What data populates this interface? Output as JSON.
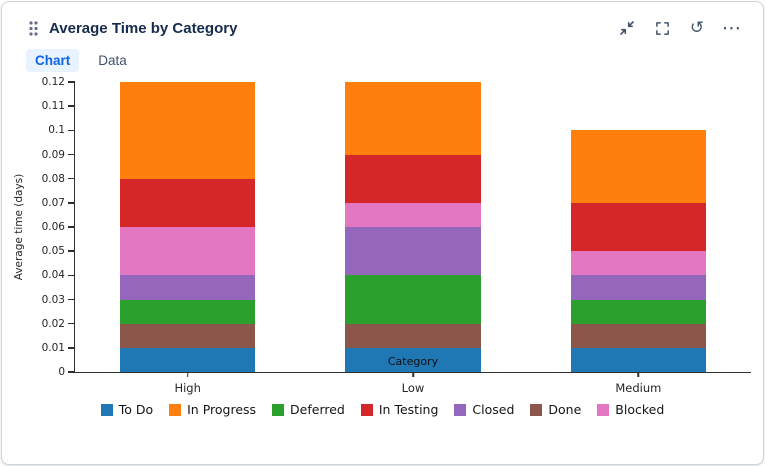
{
  "header": {
    "title": "Average Time by Category",
    "refresh_glyph": "↺",
    "more_glyph": "⋯"
  },
  "tabs": [
    {
      "label": "Chart",
      "active": true
    },
    {
      "label": "Data",
      "active": false
    }
  ],
  "chart_data": {
    "type": "bar",
    "stacked": true,
    "title": "Average Time by Category",
    "xlabel": "Category",
    "ylabel": "Average time (days)",
    "ylim": [
      0,
      0.12
    ],
    "grid": false,
    "legend_position": "bottom",
    "categories": [
      "High",
      "Low",
      "Medium"
    ],
    "y_ticks": [
      "0",
      "0.01",
      "0.02",
      "0.03",
      "0.04",
      "0.05",
      "0.06",
      "0.07",
      "0.08",
      "0.09",
      "0.1",
      "0.11",
      "0.12"
    ],
    "series": [
      {
        "name": "To Do",
        "color": "#1f77b4",
        "values": [
          0.01,
          0.01,
          0.01
        ]
      },
      {
        "name": "Done",
        "color": "#8c564b",
        "values": [
          0.01,
          0.01,
          0.01
        ]
      },
      {
        "name": "Deferred",
        "color": "#2ca02c",
        "values": [
          0.01,
          0.02,
          0.01
        ]
      },
      {
        "name": "Closed",
        "color": "#9467bd",
        "values": [
          0.01,
          0.02,
          0.01
        ]
      },
      {
        "name": "Blocked",
        "color": "#e377c2",
        "values": [
          0.02,
          0.01,
          0.01
        ]
      },
      {
        "name": "In Testing",
        "color": "#d62728",
        "values": [
          0.02,
          0.02,
          0.02
        ]
      },
      {
        "name": "In Progress",
        "color": "#ff7f0e",
        "values": [
          0.04,
          0.03,
          0.03
        ]
      }
    ],
    "legend": [
      "To Do",
      "In Progress",
      "Deferred",
      "In Testing",
      "Closed",
      "Done",
      "Blocked"
    ],
    "bar_totals": {
      "High": 0.12,
      "Low": 0.12,
      "Medium": 0.1
    }
  }
}
